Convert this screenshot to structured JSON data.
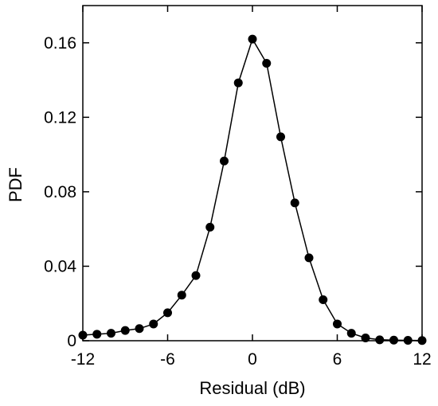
{
  "chart_data": {
    "type": "line",
    "title": "",
    "xlabel": "Residual (dB)",
    "ylabel": "PDF",
    "xlim": [
      -12,
      12
    ],
    "ylim": [
      0,
      0.18
    ],
    "xticks": [
      -12,
      -6,
      0,
      6,
      12
    ],
    "xtick_labels": [
      "-12",
      "-6",
      "0",
      "6",
      "12"
    ],
    "yticks": [
      0,
      0.04,
      0.08,
      0.12,
      0.16
    ],
    "ytick_labels": [
      "0",
      "0.04",
      "0.08",
      "0.12",
      "0.16"
    ],
    "grid": false,
    "series": [
      {
        "color": "#000000",
        "marker": "circle",
        "x": [
          -12,
          -11,
          -10,
          -9,
          -8,
          -7,
          -6,
          -5,
          -4,
          -3,
          -2,
          -1,
          0,
          1,
          2,
          3,
          4,
          5,
          6,
          7,
          8,
          9,
          10,
          11,
          12
        ],
        "y": [
          0.003,
          0.0035,
          0.004,
          0.0055,
          0.0065,
          0.009,
          0.015,
          0.0245,
          0.035,
          0.061,
          0.0965,
          0.1385,
          0.162,
          0.149,
          0.1095,
          0.074,
          0.0445,
          0.022,
          0.009,
          0.004,
          0.0015,
          0.0005,
          0.0003,
          0.0002,
          0.0001
        ]
      }
    ]
  }
}
